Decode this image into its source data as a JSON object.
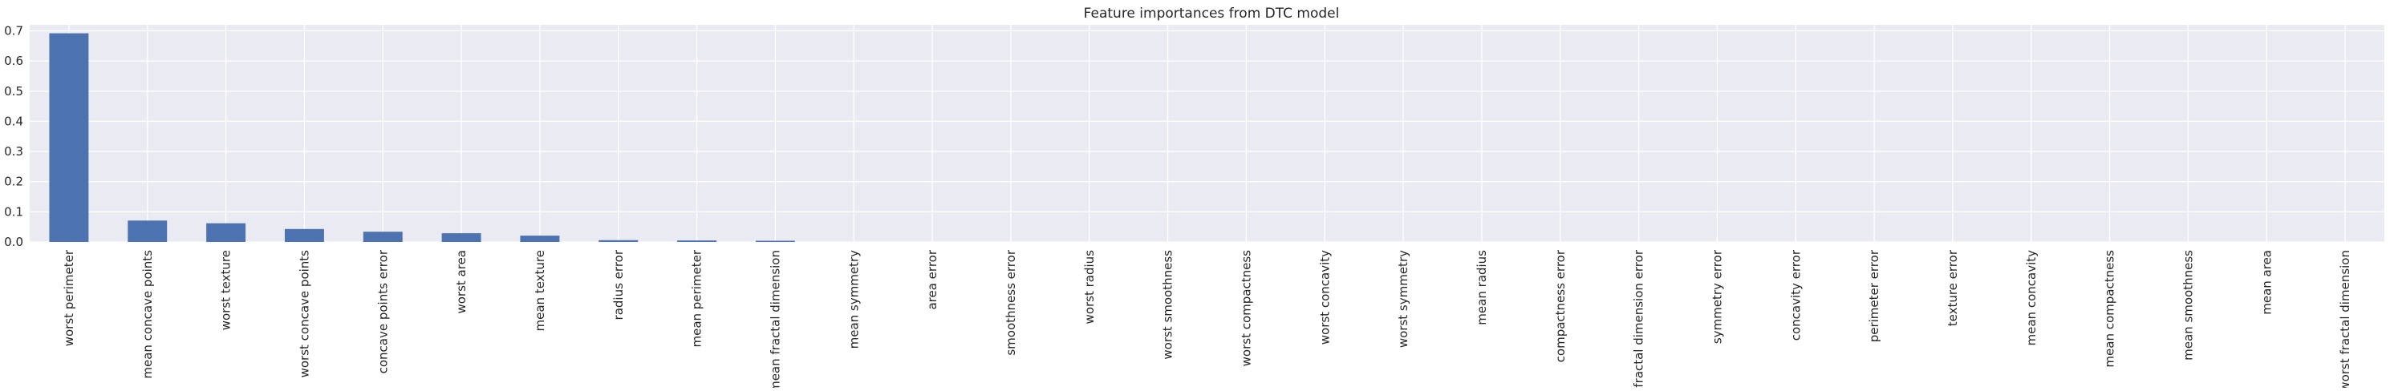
{
  "chart_data": {
    "type": "bar",
    "title": "Feature importances from DTC model",
    "xlabel": "",
    "ylabel": "",
    "ylim": [
      0,
      0.72
    ],
    "yticks": [
      0.0,
      0.1,
      0.2,
      0.3,
      0.4,
      0.5,
      0.6,
      0.7
    ],
    "ytick_labels": [
      "0.0",
      "0.1",
      "0.2",
      "0.3",
      "0.4",
      "0.5",
      "0.6",
      "0.7"
    ],
    "grid": true,
    "legend": "none",
    "bar_color": "#4c72b0",
    "background_color": "#eaeaf2",
    "categories": [
      "worst perimeter",
      "mean concave points",
      "worst texture",
      "worst concave points",
      "concave points error",
      "worst area",
      "mean texture",
      "radius error",
      "mean perimeter",
      "mean fractal dimension",
      "mean symmetry",
      "area error",
      "smoothness error",
      "worst radius",
      "worst smoothness",
      "worst compactness",
      "worst concavity",
      "worst symmetry",
      "mean radius",
      "compactness error",
      "fractal dimension error",
      "symmetry error",
      "concavity error",
      "perimeter error",
      "texture error",
      "mean concavity",
      "mean compactness",
      "mean smoothness",
      "mean area",
      "worst fractal dimension"
    ],
    "values": [
      0.692,
      0.071,
      0.062,
      0.043,
      0.034,
      0.029,
      0.021,
      0.006,
      0.005,
      0.004,
      0.0,
      0.0,
      0.0,
      0.0,
      0.0,
      0.0,
      0.0,
      0.0,
      0.0,
      0.0,
      0.0,
      0.0,
      0.0,
      0.0,
      0.0,
      0.0,
      0.0,
      0.0,
      0.0,
      0.0
    ]
  }
}
